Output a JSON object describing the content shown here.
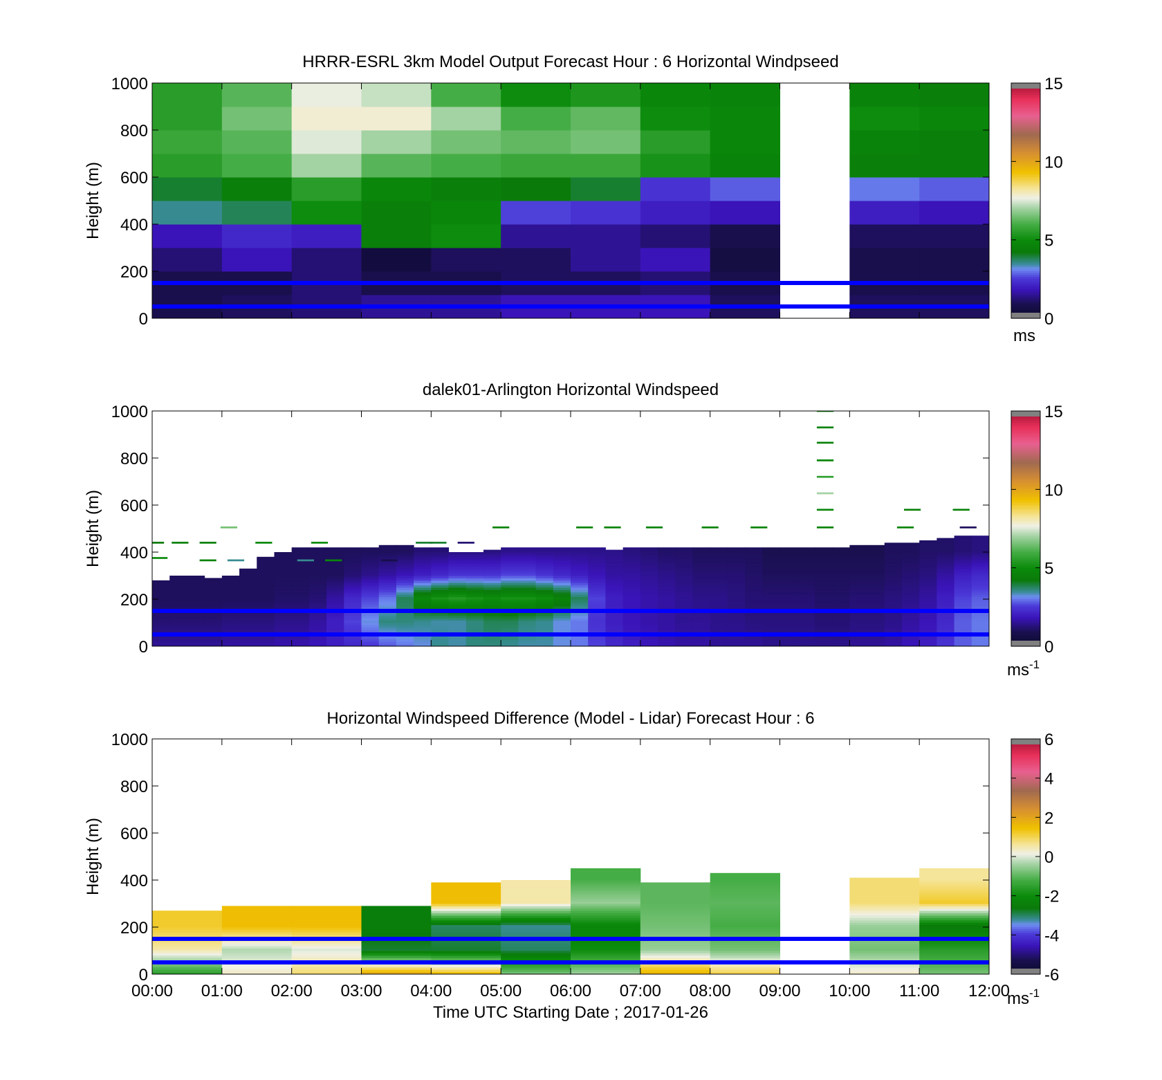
{
  "chart_data": [
    {
      "type": "heatmap",
      "title": "HRRR-ESRL 3km Model Output   Forecast Hour : 6 Horizontal Windpseed",
      "ylabel": "Height (m)",
      "xlabel": "",
      "ylim": [
        0,
        1000
      ],
      "yticks": [
        "0",
        "200",
        "400",
        "600",
        "800",
        "1000"
      ],
      "xlim_hours": [
        0,
        12
      ],
      "reference_lines_m": [
        50,
        150
      ],
      "colorbar": {
        "ticks": [
          "0",
          "5",
          "10",
          "15"
        ],
        "range": [
          0,
          15
        ],
        "unit": "ms",
        "unit_sup": ""
      },
      "bin_width_hours": 1,
      "bin_height_m": 100,
      "missing_columns_hours": [
        9
      ],
      "grid_speed_ms": [
        [
          0.8,
          1.0,
          1.2,
          1.5,
          1.5,
          1.8,
          1.8,
          1.8,
          1.0,
          null,
          1.0,
          1.0
        ],
        [
          0.8,
          0.8,
          1.2,
          0.8,
          0.8,
          1.0,
          1.0,
          1.2,
          0.8,
          null,
          0.8,
          0.8
        ],
        [
          1.2,
          1.8,
          1.2,
          0.5,
          1.0,
          1.0,
          1.5,
          1.8,
          0.6,
          null,
          0.8,
          0.8
        ],
        [
          1.8,
          2.2,
          2.0,
          4.5,
          5.0,
          1.5,
          1.5,
          1.2,
          0.8,
          null,
          1.0,
          1.0
        ],
        [
          3.5,
          3.8,
          5.0,
          4.5,
          4.8,
          2.6,
          2.4,
          2.0,
          1.8,
          null,
          2.0,
          1.8
        ],
        [
          4.0,
          4.5,
          5.5,
          4.8,
          4.5,
          4.2,
          4.0,
          2.4,
          2.8,
          null,
          3.0,
          2.8
        ],
        [
          5.5,
          6.0,
          7.0,
          6.2,
          6.0,
          5.8,
          5.8,
          5.2,
          4.6,
          null,
          4.5,
          4.5
        ],
        [
          5.8,
          6.2,
          7.5,
          7.0,
          6.5,
          6.3,
          6.5,
          5.5,
          4.8,
          null,
          4.6,
          4.5
        ],
        [
          5.5,
          6.5,
          7.8,
          7.8,
          7.0,
          6.0,
          6.3,
          5.0,
          4.8,
          null,
          5.0,
          4.8
        ],
        [
          5.5,
          6.2,
          7.6,
          7.3,
          6.0,
          5.0,
          5.3,
          4.8,
          4.6,
          null,
          4.6,
          4.5
        ]
      ]
    },
    {
      "type": "heatmap",
      "title": "dalek01-Arlington  Horizontal Windspeed",
      "ylabel": "Height (m)",
      "xlabel": "",
      "ylim": [
        0,
        1000
      ],
      "yticks": [
        "0",
        "200",
        "400",
        "600",
        "800",
        "1000"
      ],
      "xlim_hours": [
        0,
        12
      ],
      "reference_lines_m": [
        50,
        150
      ],
      "colorbar": {
        "ticks": [
          "0",
          "5",
          "10",
          "15"
        ],
        "range": [
          0,
          15
        ],
        "unit": "ms",
        "unit_sup": "-1"
      },
      "bin_width_hours": 0.25,
      "data_top_m": [
        280,
        300,
        300,
        290,
        300,
        330,
        380,
        400,
        420,
        420,
        420,
        420,
        420,
        430,
        430,
        420,
        420,
        400,
        400,
        410,
        420,
        420,
        420,
        420,
        420,
        420,
        410,
        420,
        420,
        420,
        420,
        420,
        420,
        420,
        420,
        420,
        420,
        420,
        420,
        420,
        430,
        430,
        440,
        440,
        450,
        460,
        470,
        470
      ],
      "profile_speed_ms_0_100_200_300_400m": [
        [
          1.5,
          1.2,
          1.0,
          1.0,
          1.0
        ],
        [
          1.5,
          1.2,
          1.0,
          1.0,
          1.0
        ],
        [
          1.5,
          1.2,
          1.0,
          1.0,
          1.0
        ],
        [
          1.5,
          1.2,
          1.0,
          1.0,
          1.0
        ],
        [
          1.6,
          1.3,
          1.0,
          1.0,
          1.0
        ],
        [
          1.6,
          1.3,
          1.0,
          1.0,
          1.0
        ],
        [
          1.6,
          1.3,
          1.0,
          1.0,
          1.0
        ],
        [
          1.7,
          1.4,
          1.1,
          1.0,
          1.0
        ],
        [
          1.7,
          1.4,
          1.1,
          1.0,
          1.0
        ],
        [
          1.8,
          1.6,
          1.2,
          1.0,
          1.0
        ],
        [
          2.0,
          2.0,
          1.6,
          1.0,
          1.0
        ],
        [
          2.2,
          2.6,
          2.2,
          1.2,
          1.0
        ],
        [
          2.5,
          3.2,
          2.6,
          1.4,
          1.0
        ],
        [
          2.8,
          3.6,
          3.0,
          1.6,
          1.0
        ],
        [
          3.0,
          3.6,
          3.8,
          1.8,
          1.0
        ],
        [
          3.2,
          3.5,
          4.8,
          2.0,
          1.2
        ],
        [
          3.5,
          3.4,
          5.2,
          2.2,
          1.2
        ],
        [
          3.4,
          3.4,
          5.4,
          2.4,
          1.3
        ],
        [
          3.6,
          3.6,
          5.2,
          2.4,
          1.3
        ],
        [
          3.6,
          3.8,
          5.0,
          2.4,
          1.3
        ],
        [
          3.5,
          3.8,
          5.2,
          2.6,
          1.4
        ],
        [
          3.4,
          3.6,
          5.2,
          2.6,
          1.4
        ],
        [
          3.4,
          3.5,
          5.0,
          2.4,
          1.4
        ],
        [
          3.2,
          3.2,
          4.6,
          2.2,
          1.4
        ],
        [
          3.0,
          3.0,
          3.8,
          2.0,
          1.4
        ],
        [
          2.6,
          2.4,
          2.6,
          1.8,
          1.4
        ],
        [
          2.2,
          2.0,
          2.0,
          1.6,
          1.4
        ],
        [
          2.0,
          1.8,
          1.8,
          1.6,
          1.3
        ],
        [
          1.8,
          1.7,
          1.7,
          1.5,
          1.2
        ],
        [
          1.7,
          1.6,
          1.6,
          1.4,
          1.1
        ],
        [
          1.6,
          1.5,
          1.5,
          1.3,
          1.1
        ],
        [
          1.6,
          1.5,
          1.4,
          1.2,
          1.0
        ],
        [
          1.5,
          1.4,
          1.4,
          1.2,
          1.0
        ],
        [
          1.5,
          1.4,
          1.3,
          1.2,
          1.0
        ],
        [
          1.5,
          1.3,
          1.2,
          1.1,
          1.0
        ],
        [
          1.4,
          1.3,
          1.2,
          1.0,
          0.9
        ],
        [
          1.4,
          1.3,
          1.2,
          1.0,
          0.9
        ],
        [
          1.4,
          1.3,
          1.2,
          1.0,
          0.9
        ],
        [
          1.4,
          1.2,
          1.1,
          1.0,
          0.9
        ],
        [
          1.4,
          1.2,
          1.1,
          1.0,
          0.9
        ],
        [
          1.5,
          1.3,
          1.2,
          1.0,
          0.9
        ],
        [
          1.5,
          1.3,
          1.2,
          1.0,
          0.9
        ],
        [
          1.6,
          1.4,
          1.3,
          1.1,
          1.0
        ],
        [
          1.8,
          1.6,
          1.4,
          1.2,
          1.0
        ],
        [
          2.0,
          1.8,
          1.6,
          1.3,
          1.1
        ],
        [
          2.4,
          2.2,
          2.0,
          1.6,
          1.1
        ],
        [
          2.8,
          2.8,
          2.6,
          2.0,
          1.2
        ],
        [
          3.0,
          3.0,
          2.8,
          2.2,
          1.3
        ]
      ],
      "sparse_marks": [
        {
          "t": 0.05,
          "h": 440,
          "speed": 4.2
        },
        {
          "t": 0.4,
          "h": 440,
          "speed": 4.5
        },
        {
          "t": 0.8,
          "h": 440,
          "speed": 4.5
        },
        {
          "t": 1.6,
          "h": 440,
          "speed": 4.9
        },
        {
          "t": 2.4,
          "h": 440,
          "speed": 5.0
        },
        {
          "t": 0.1,
          "h": 375,
          "speed": 5.0
        },
        {
          "t": 0.8,
          "h": 365,
          "speed": 4.6
        },
        {
          "t": 1.2,
          "h": 365,
          "speed": 3.5
        },
        {
          "t": 2.2,
          "h": 365,
          "speed": 3.5
        },
        {
          "t": 2.6,
          "h": 365,
          "speed": 4.8
        },
        {
          "t": 3.4,
          "h": 365,
          "speed": 0.8
        },
        {
          "t": 1.1,
          "h": 505,
          "speed": 6.5
        },
        {
          "t": 3.9,
          "h": 440,
          "speed": 4.0
        },
        {
          "t": 4.1,
          "h": 440,
          "speed": 4.0
        },
        {
          "t": 4.5,
          "h": 440,
          "speed": 1.2
        },
        {
          "t": 5.0,
          "h": 505,
          "speed": 4.6
        },
        {
          "t": 6.2,
          "h": 505,
          "speed": 4.6
        },
        {
          "t": 6.6,
          "h": 505,
          "speed": 4.6
        },
        {
          "t": 7.2,
          "h": 505,
          "speed": 4.6
        },
        {
          "t": 8.0,
          "h": 505,
          "speed": 4.6
        },
        {
          "t": 8.7,
          "h": 505,
          "speed": 4.6
        },
        {
          "t": 9.65,
          "h": 1000,
          "speed": 4.8
        },
        {
          "t": 9.65,
          "h": 930,
          "speed": 4.6
        },
        {
          "t": 9.65,
          "h": 865,
          "speed": 4.6
        },
        {
          "t": 9.65,
          "h": 790,
          "speed": 4.8
        },
        {
          "t": 9.65,
          "h": 720,
          "speed": 5.6
        },
        {
          "t": 9.65,
          "h": 650,
          "speed": 7.0
        },
        {
          "t": 9.65,
          "h": 580,
          "speed": 4.8
        },
        {
          "t": 9.65,
          "h": 505,
          "speed": 4.6
        },
        {
          "t": 10.9,
          "h": 580,
          "speed": 4.6
        },
        {
          "t": 11.6,
          "h": 580,
          "speed": 4.6
        },
        {
          "t": 10.8,
          "h": 505,
          "speed": 4.6
        },
        {
          "t": 11.7,
          "h": 505,
          "speed": 1.0
        }
      ]
    },
    {
      "type": "heatmap",
      "title": "Horizontal Windspeed Difference (Model - Lidar) Forecast Hour : 6",
      "ylabel": "Height (m)",
      "xlabel": "Time UTC  Starting Date ; 2017-01-26",
      "ylim": [
        0,
        1000
      ],
      "yticks": [
        "0",
        "200",
        "400",
        "600",
        "800",
        "1000"
      ],
      "xticks": [
        "00:00",
        "01:00",
        "02:00",
        "03:00",
        "04:00",
        "05:00",
        "06:00",
        "07:00",
        "08:00",
        "09:00",
        "10:00",
        "11:00",
        "12:00"
      ],
      "xlim_hours": [
        0,
        12
      ],
      "reference_lines_m": [
        50,
        150
      ],
      "colorbar": {
        "ticks": [
          "-6",
          "-4",
          "-2",
          "0",
          "2",
          "4",
          "6"
        ],
        "range": [
          -6,
          6
        ],
        "unit": "ms",
        "unit_sup": "-1"
      },
      "bin_width_hours": 1,
      "column_top_m": [
        270,
        290,
        290,
        290,
        390,
        400,
        450,
        390,
        430,
        null,
        410,
        450
      ],
      "diff_ms_0_100_200_300_400m": [
        [
          -1.5,
          0.5,
          1.2,
          null,
          null
        ],
        [
          0.3,
          -0.3,
          1.5,
          null,
          null
        ],
        [
          0.8,
          0.0,
          1.5,
          null,
          null
        ],
        [
          1.8,
          -2.8,
          -2.5,
          null,
          null
        ],
        [
          1.4,
          -2.8,
          -3.0,
          1.5,
          null
        ],
        [
          -0.8,
          -3.0,
          -3.2,
          0.5,
          null
        ],
        [
          -0.5,
          -2.0,
          -2.2,
          -0.5,
          -1.2
        ],
        [
          1.6,
          -0.5,
          -0.8,
          -1.0,
          null
        ],
        [
          1.0,
          -0.8,
          -1.2,
          -1.0,
          -1.2
        ],
        [
          null,
          null,
          null,
          null,
          null
        ],
        [
          0.3,
          -0.8,
          -0.5,
          0.8,
          0.8
        ],
        [
          -0.8,
          -1.6,
          -2.6,
          1.2,
          0.6
        ]
      ]
    }
  ]
}
